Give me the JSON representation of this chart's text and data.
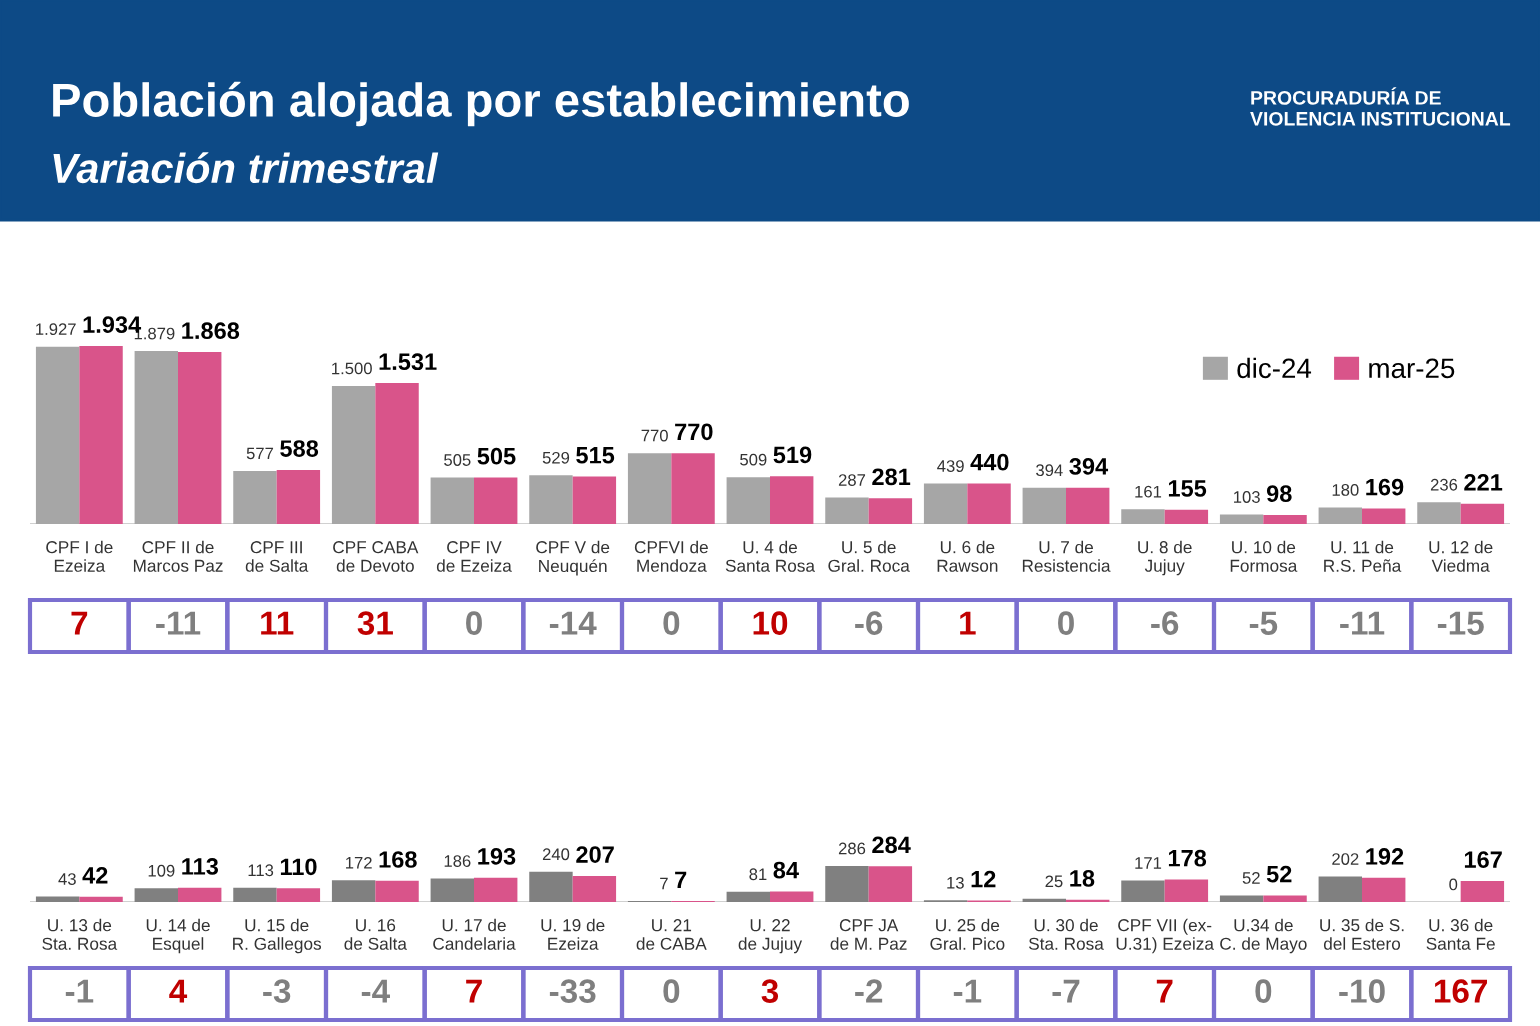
{
  "chart_data": [
    {
      "type": "bar",
      "title": "Población alojada por establecimiento",
      "subtitle": "Variación trimestral",
      "categories": [
        "CPF I de Ezeiza",
        "CPF II de Marcos Paz",
        "CPF III de Salta",
        "CPF CABA de Devoto",
        "CPF IV de Ezeiza",
        "CPF V de Neuquén",
        "CPFVI de Mendoza",
        "U. 4 de Santa Rosa",
        "U. 5 de Gral. Roca",
        "U. 6 de Rawson",
        "U. 7 de Resistencia",
        "U. 8 de Jujuy",
        "U. 10 de Formosa",
        "U. 11 de R.S. Peña",
        "U. 12 de Viedma"
      ],
      "series": [
        {
          "name": "dic-24",
          "color": "#a6a6a6",
          "values": [
            1927,
            1879,
            577,
            1500,
            505,
            529,
            770,
            509,
            287,
            439,
            394,
            161,
            103,
            180,
            236
          ],
          "value_labels": [
            "1.927",
            "1.879",
            "577",
            "1.500",
            "505",
            "529",
            "770",
            "509",
            "287",
            "439",
            "394",
            "161",
            "103",
            "180",
            "236"
          ]
        },
        {
          "name": "mar-25",
          "color": "#d9548a",
          "values": [
            1934,
            1868,
            588,
            1531,
            505,
            515,
            770,
            519,
            281,
            440,
            394,
            155,
            98,
            169,
            221
          ],
          "value_labels": [
            "1.934",
            "1.868",
            "588",
            "1.531",
            "505",
            "515",
            "770",
            "519",
            "281",
            "440",
            "394",
            "155",
            "98",
            "169",
            "221"
          ]
        }
      ],
      "annotations": [
        "7",
        "-11",
        "11",
        "31",
        "0",
        "-14",
        "0",
        "10",
        "-6",
        "1",
        "0",
        "-6",
        "-5",
        "-11",
        "-15",
        "PROCURADURÍA DE VIOLENCIA INSTITUCIONAL"
      ],
      "tick_labels": "x",
      "data_labels": true,
      "legend": "top right",
      "grid": false
    },
    {
      "type": "bar",
      "categories": [
        "U. 13 de Sta. Rosa",
        "U. 14 de Esquel",
        "U. 15 de R. Gallegos",
        "U. 16 de Salta",
        "U. 17 de Candelaria",
        "U. 19 de Ezeiza",
        "U. 21 de CABA",
        "U. 22 de Jujuy",
        "CPF JA de M. Paz",
        "U. 25 de Gral. Pico",
        "U. 30 de Sta. Rosa",
        "CPF VII (ex-U.31) Ezeiza",
        "U.34 de C. de Mayo",
        "U. 35 de S. del Estero",
        "U. 36 de Santa Fe"
      ],
      "series": [
        {
          "color": "#808080",
          "values": [
            43,
            109,
            113,
            172,
            186,
            240,
            7,
            81,
            286,
            13,
            25,
            171,
            52,
            202,
            0
          ]
        },
        {
          "color": "#d9548a",
          "values": [
            42,
            113,
            110,
            168,
            193,
            207,
            7,
            84,
            284,
            12,
            18,
            178,
            52,
            192,
            167
          ]
        }
      ],
      "annotations": [
        "-1",
        "4",
        "-3",
        "-4",
        "7",
        "-33",
        "0",
        "3",
        "-2",
        "-1",
        "-7",
        "7",
        "0",
        "-10",
        "167"
      ],
      "tick_labels": "x",
      "data_labels": true,
      "grid": false
    }
  ]
}
